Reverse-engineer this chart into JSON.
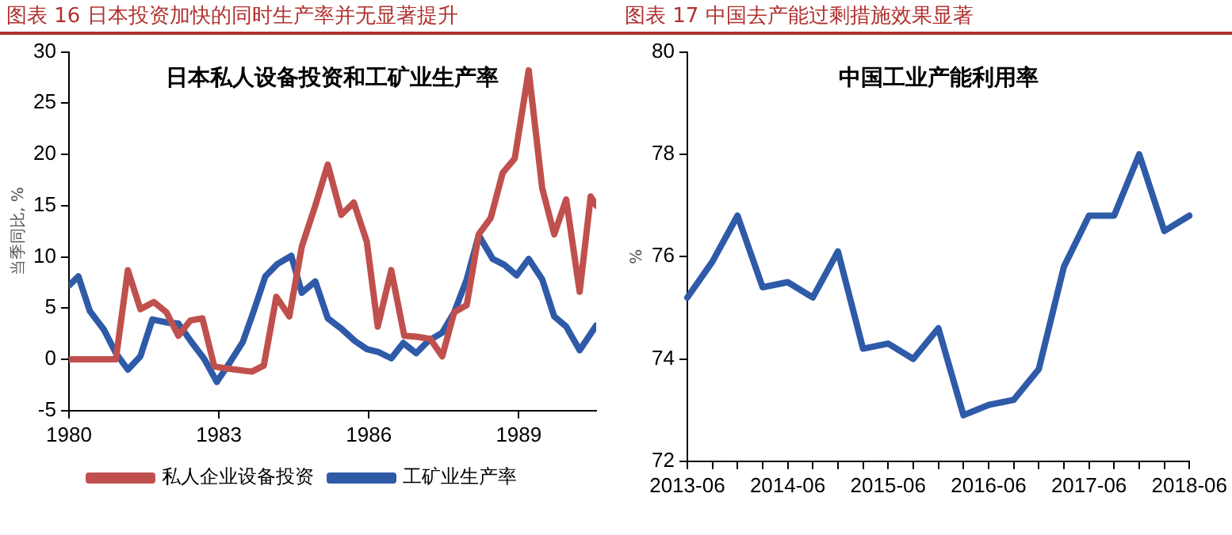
{
  "chart_data": [
    {
      "type": "line",
      "title": "图表 16 日本投资加快的同时生产率并无显著提升",
      "subtitle": "日本私人设备投资和工矿业生产率",
      "ylabel": "当季同比, %",
      "xlim": [
        1980,
        1990.55
      ],
      "xticks": [
        1980,
        1983,
        1986,
        1989
      ],
      "ylim": [
        -5,
        30
      ],
      "yticks": [
        -5,
        0,
        5,
        10,
        15,
        20,
        25,
        30
      ],
      "legend": "bottom",
      "marker": "none",
      "series": [
        {
          "name": "私人企业设备投资",
          "color": "#c0504d",
          "x": [
            1980,
            1980.94,
            1981.18,
            1981.43,
            1981.7,
            1981.95,
            1982.19,
            1982.43,
            1982.67,
            1982.91,
            1983.18,
            1983.66,
            1983.9,
            1984.15,
            1984.41,
            1984.66,
            1984.93,
            1985.18,
            1985.45,
            1985.7,
            1985.96,
            1986.18,
            1986.45,
            1986.71,
            1986.96,
            1987.23,
            1987.47,
            1987.71,
            1987.96,
            1988.2,
            1988.44,
            1988.68,
            1988.92,
            1989.2,
            1989.47,
            1989.71,
            1989.95,
            1990.22,
            1990.44,
            1990.55
          ],
          "values": [
            0,
            0,
            8.7,
            4.9,
            5.6,
            4.6,
            2.3,
            3.8,
            4.0,
            -0.7,
            -0.9,
            -1.2,
            -0.6,
            6.1,
            4.2,
            11,
            15,
            19,
            14.1,
            15.3,
            11.5,
            3.2,
            8.7,
            2.3,
            2.2,
            2.0,
            0.3,
            4.6,
            5.3,
            12.2,
            13.8,
            18.2,
            19.6,
            28.2,
            16.7,
            12.2,
            15.6,
            6.6,
            15.9,
            15
          ]
        },
        {
          "name": "工矿业生产率",
          "color": "#2e5aa8",
          "x": [
            1980,
            1980.19,
            1980.42,
            1980.7,
            1980.94,
            1981.18,
            1981.43,
            1981.67,
            1981.95,
            1982.19,
            1982.45,
            1982.7,
            1982.96,
            1983.18,
            1983.48,
            1983.69,
            1983.93,
            1984.17,
            1984.45,
            1984.66,
            1984.93,
            1985.18,
            1985.45,
            1985.72,
            1985.96,
            1986.2,
            1986.45,
            1986.69,
            1986.95,
            1987.19,
            1987.47,
            1987.71,
            1987.96,
            1988.2,
            1988.48,
            1988.72,
            1988.96,
            1989.2,
            1989.47,
            1989.71,
            1989.95,
            1990.22,
            1990.55
          ],
          "values": [
            7.2,
            8.1,
            4.7,
            2.9,
            0.6,
            -1.0,
            0.3,
            3.9,
            3.6,
            3.5,
            1.7,
            0.1,
            -2.2,
            -0.6,
            1.7,
            4.6,
            8.1,
            9.3,
            10.1,
            6.5,
            7.6,
            4.0,
            3.0,
            1.8,
            1.0,
            0.7,
            0.1,
            1.6,
            0.6,
            1.8,
            2.6,
            4.6,
            7.8,
            12.1,
            9.8,
            9.2,
            8.2,
            9.8,
            7.8,
            4.2,
            3.2,
            0.9,
            3.3
          ]
        }
      ]
    },
    {
      "type": "line",
      "title": "图表 17 中国去产能过剩措施效果显著",
      "subtitle": "中国工业产能利用率",
      "ylabel": "%",
      "ylim": [
        72,
        80
      ],
      "yticks": [
        72,
        74,
        76,
        78,
        80
      ],
      "marker": "none",
      "categories": [
        "2013-06",
        null,
        null,
        null,
        "2014-06",
        null,
        null,
        null,
        "2015-06",
        null,
        null,
        null,
        "2016-06",
        null,
        null,
        null,
        "2017-06",
        null,
        null,
        null,
        "2018-06"
      ],
      "series": [
        {
          "color": "#2e5aa8",
          "values": [
            75.2,
            75.9,
            76.8,
            75.4,
            75.5,
            75.2,
            76.1,
            74.2,
            74.3,
            74.0,
            74.6,
            72.9,
            73.1,
            73.2,
            73.8,
            75.8,
            76.8,
            76.8,
            78.0,
            76.5,
            76.8
          ]
        }
      ]
    }
  ]
}
